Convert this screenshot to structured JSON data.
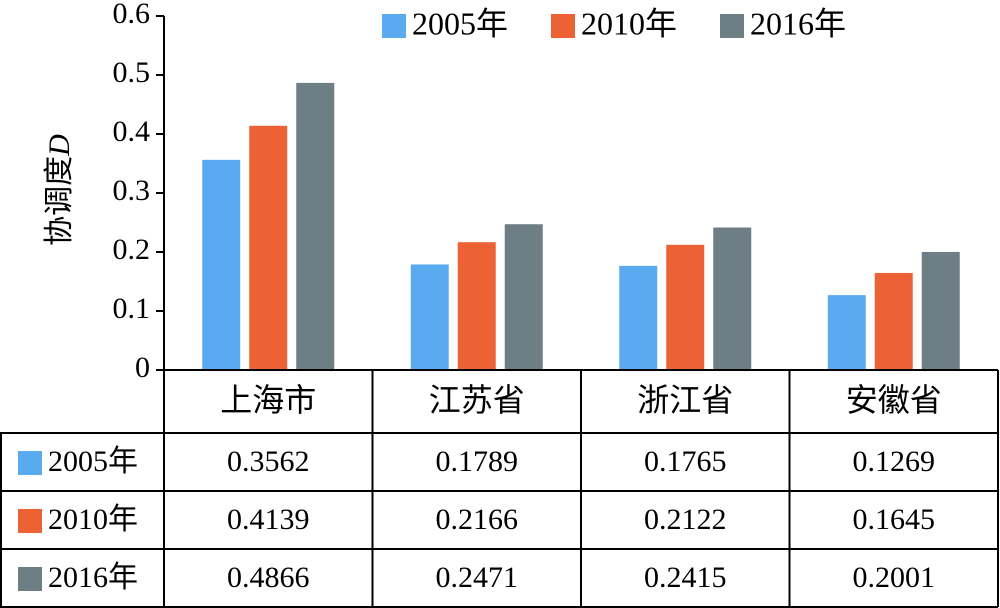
{
  "chart_data": {
    "type": "bar",
    "ylabel": "协调度D",
    "ylabel_main": "协调度",
    "ylabel_var": "D",
    "ylim": [
      0,
      0.6
    ],
    "yticks": [
      "0",
      "0.1",
      "0.2",
      "0.3",
      "0.4",
      "0.5",
      "0.6"
    ],
    "grid": false,
    "legend_position": "top-right",
    "categories": [
      "上海市",
      "江苏省",
      "浙江省",
      "安徽省"
    ],
    "series": [
      {
        "name": "2005年",
        "color": "#5aaaf0",
        "values": [
          0.3562,
          0.1789,
          0.1765,
          0.1269
        ],
        "labels": [
          "0.3562",
          "0.1789",
          "0.1765",
          "0.1269"
        ]
      },
      {
        "name": "2010年",
        "color": "#ec6234",
        "values": [
          0.4139,
          0.2166,
          0.2122,
          0.1645
        ],
        "labels": [
          "0.4139",
          "0.2166",
          "0.2122",
          "0.1645"
        ]
      },
      {
        "name": "2016年",
        "color": "#6d7e84",
        "values": [
          0.4866,
          0.2471,
          0.2415,
          0.2001
        ],
        "labels": [
          "0.4866",
          "0.2471",
          "0.2415",
          "0.2001"
        ]
      }
    ],
    "data_table": true
  }
}
